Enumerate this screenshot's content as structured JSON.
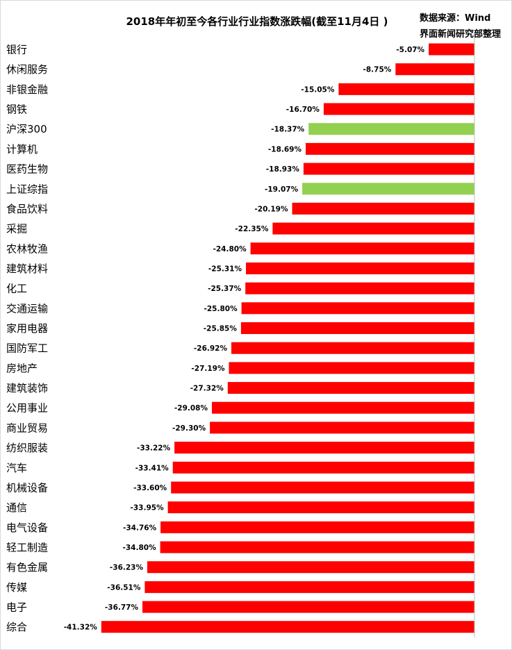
{
  "chart_data": {
    "type": "bar",
    "orientation": "horizontal",
    "title": "2018年年初至今各行业行业指数涨跌幅(截至11月4日 )",
    "source_line1": "数据来源：Wind",
    "source_line2": "界面新闻研究部整理",
    "categories": [
      "银行",
      "休闲服务",
      "非银金融",
      "钢铁",
      "沪深300",
      "计算机",
      "医药生物",
      "上证综指",
      "食品饮料",
      "采掘",
      "农林牧渔",
      "建筑材料",
      "化工",
      "交通运输",
      "家用电器",
      "国防军工",
      "房地产",
      "建筑装饰",
      "公用事业",
      "商业贸易",
      "纺织服装",
      "汽车",
      "机械设备",
      "通信",
      "电气设备",
      "轻工制造",
      "有色金属",
      "传媒",
      "电子",
      "综合"
    ],
    "values": [
      -5.07,
      -8.75,
      -15.05,
      -16.7,
      -18.37,
      -18.69,
      -18.93,
      -19.07,
      -20.19,
      -22.35,
      -24.8,
      -25.31,
      -25.37,
      -25.8,
      -25.85,
      -26.92,
      -27.19,
      -27.32,
      -29.08,
      -29.3,
      -33.22,
      -33.41,
      -33.6,
      -33.95,
      -34.76,
      -34.8,
      -36.23,
      -36.51,
      -36.77,
      -41.32
    ],
    "labels": [
      "-5.07%",
      "-8.75%",
      "-15.05%",
      "-16.70%",
      "-18.37%",
      "-18.69%",
      "-18.93%",
      "-19.07%",
      "-20.19%",
      "-22.35%",
      "-24.80%",
      "-25.31%",
      "-25.37%",
      "-25.80%",
      "-25.85%",
      "-26.92%",
      "-27.19%",
      "-27.32%",
      "-29.08%",
      "-29.30%",
      "-33.22%",
      "-33.41%",
      "-33.60%",
      "-33.95%",
      "-34.76%",
      "-34.80%",
      "-36.23%",
      "-36.51%",
      "-36.77%",
      "-41.32%"
    ],
    "highlight_categories": [
      "沪深300",
      "上证综指"
    ],
    "colors": {
      "bar": "#ff0000",
      "highlight": "#92d050",
      "axis": "#bfbfbf"
    },
    "grid": false,
    "legend": "none"
  }
}
